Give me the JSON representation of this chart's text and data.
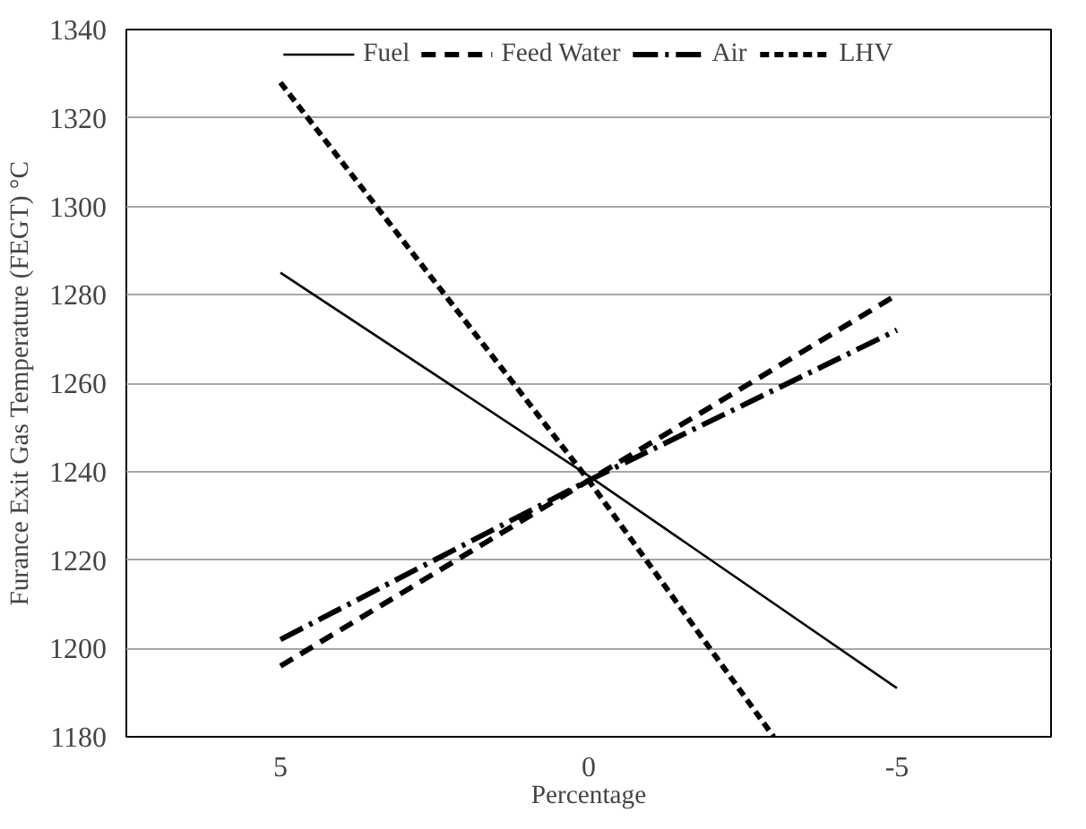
{
  "chart_data": {
    "type": "line",
    "xlabel": "Percentage",
    "ylabel": "Furance Exit Gas Temperature (FEGT) °C",
    "x": [
      5,
      0,
      -5
    ],
    "xlim": [
      7.5,
      -7.5
    ],
    "xticks": [
      5,
      0,
      -5
    ],
    "ylim": [
      1180,
      1340
    ],
    "yticks": [
      1180,
      1200,
      1220,
      1240,
      1260,
      1280,
      1300,
      1320,
      1340
    ],
    "grid": "y",
    "legend": "top",
    "marker": "none",
    "series": [
      {
        "name": "Fuel",
        "color": "#000000",
        "line_style": "solid",
        "values": [
          1285,
          1239,
          1191
        ]
      },
      {
        "name": "Feed Water",
        "color": "#000000",
        "line_style": "dashed",
        "values": [
          1196,
          1238,
          1280
        ]
      },
      {
        "name": "Air",
        "color": "#000000",
        "line_style": "dashdot",
        "values": [
          1202,
          1238,
          1272
        ]
      },
      {
        "name": "LHV",
        "color": "#000000",
        "line_style": "dotted",
        "x": [
          5,
          0,
          -3
        ],
        "values": [
          1328,
          1238,
          1180
        ]
      }
    ]
  }
}
